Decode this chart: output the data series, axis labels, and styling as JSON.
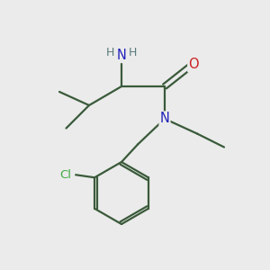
{
  "background_color": "#ebebeb",
  "bond_color": "#3a5a3a",
  "N_color": "#2222bb",
  "O_color": "#cc2020",
  "Cl_color": "#44aa44",
  "H_color": "#5a7a7a",
  "figsize": [
    3.0,
    3.0
  ],
  "dpi": 100,
  "xlim": [
    0,
    10
  ],
  "ylim": [
    0,
    10
  ],
  "lw": 1.6
}
